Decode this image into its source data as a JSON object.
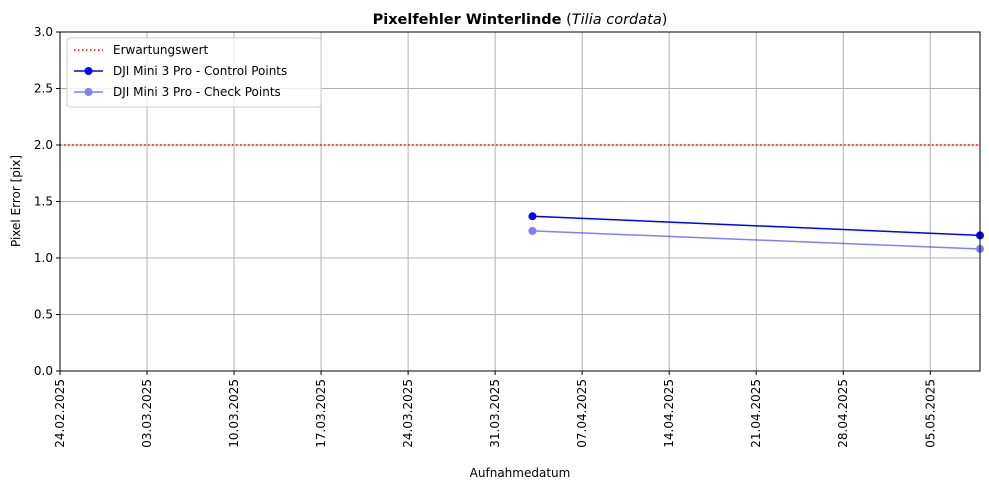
{
  "chart_data": {
    "type": "line",
    "title_bold": "Pixelfehler Winterlinde",
    "title_italic": "Tilia cordata",
    "xlabel": "Aufnahmedatum",
    "ylabel": "Pixel Error [pix]",
    "x_type": "date",
    "xlim": [
      "2025-02-24",
      "2025-05-09"
    ],
    "ylim": [
      0.0,
      3.0
    ],
    "x_ticks": [
      {
        "date": "2025-02-24",
        "label": "24.02.2025"
      },
      {
        "date": "2025-03-03",
        "label": "03.03.2025"
      },
      {
        "date": "2025-03-10",
        "label": "10.03.2025"
      },
      {
        "date": "2025-03-17",
        "label": "17.03.2025"
      },
      {
        "date": "2025-03-24",
        "label": "24.03.2025"
      },
      {
        "date": "2025-03-31",
        "label": "31.03.2025"
      },
      {
        "date": "2025-04-07",
        "label": "07.04.2025"
      },
      {
        "date": "2025-04-14",
        "label": "14.04.2025"
      },
      {
        "date": "2025-04-21",
        "label": "21.04.2025"
      },
      {
        "date": "2025-04-28",
        "label": "28.04.2025"
      },
      {
        "date": "2025-05-05",
        "label": "05.05.2025"
      }
    ],
    "y_ticks": [
      {
        "value": 0.0,
        "label": "0.0"
      },
      {
        "value": 0.5,
        "label": "0.5"
      },
      {
        "value": 1.0,
        "label": "1.0"
      },
      {
        "value": 1.5,
        "label": "1.5"
      },
      {
        "value": 2.0,
        "label": "2.0"
      },
      {
        "value": 2.5,
        "label": "2.5"
      },
      {
        "value": 3.0,
        "label": "3.0"
      }
    ],
    "grid": true,
    "legend_position": "top-left",
    "reference_line": {
      "name": "Erwartungswert",
      "y": 2.0,
      "color": "#ff0000",
      "style": "dotted"
    },
    "series": [
      {
        "name": "DJI Mini 3 Pro - Control Points",
        "color": "#0000ff",
        "opacity": 1.0,
        "points": [
          {
            "x": "2025-04-03",
            "y": 1.37
          },
          {
            "x": "2025-05-09",
            "y": 1.2
          }
        ]
      },
      {
        "name": "DJI Mini 3 Pro - Check Points",
        "color": "#0000ff",
        "opacity": 0.5,
        "points": [
          {
            "x": "2025-04-03",
            "y": 1.24
          },
          {
            "x": "2025-05-09",
            "y": 1.08
          }
        ]
      }
    ]
  }
}
